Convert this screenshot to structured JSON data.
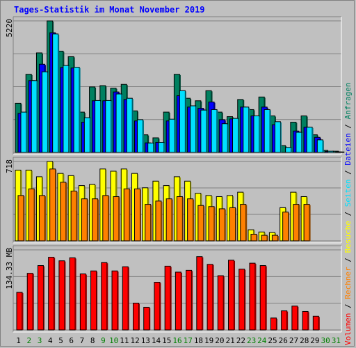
{
  "chart_data": {
    "type": "bar",
    "title": "Tages-Statistik im Monat November 2019",
    "x": [
      "1",
      "2",
      "3",
      "4",
      "5",
      "6",
      "7",
      "8",
      "9",
      "10",
      "11",
      "12",
      "13",
      "14",
      "15",
      "16",
      "17",
      "18",
      "19",
      "20",
      "21",
      "22",
      "23",
      "24",
      "25",
      "26",
      "27",
      "28",
      "29",
      "30",
      "31"
    ],
    "x_colors": [
      "#000000",
      "#008000",
      "#008000",
      "#000000",
      "#000000",
      "#000000",
      "#000000",
      "#000000",
      "#008000",
      "#008000",
      "#000000",
      "#000000",
      "#000000",
      "#000000",
      "#000000",
      "#008000",
      "#008000",
      "#000000",
      "#000000",
      "#000000",
      "#000000",
      "#000000",
      "#008000",
      "#008000",
      "#000000",
      "#000000",
      "#000000",
      "#000000",
      "#000000",
      "#008000",
      "#008000"
    ],
    "panels": [
      {
        "name": "top",
        "ymax_label": "5220",
        "ymax": 5220,
        "series": [
          {
            "name": "Anfragen",
            "color": "#008060",
            "values": [
              1950,
              3100,
              3950,
              5220,
              4020,
              3800,
              1600,
              2600,
              2650,
              2550,
              2700,
              1650,
              700,
              580,
              1600,
              3100,
              2150,
              2050,
              2450,
              1600,
              1420,
              2100,
              1700,
              2200,
              1450,
              270,
              1200,
              1450,
              700,
              80,
              50
            ]
          },
          {
            "name": "Dateien",
            "color": "#0000ff",
            "values": [
              1550,
              2850,
              3500,
              4750,
              3370,
              3350,
              1200,
              2050,
              2050,
              2400,
              2100,
              1250,
              380,
              400,
              1250,
              2250,
              1800,
              1750,
              2000,
              1300,
              1330,
              1800,
              1450,
              1800,
              1100,
              0,
              850,
              1000,
              600,
              40,
              20
            ]
          },
          {
            "name": "Seiten",
            "color": "#00e0ff",
            "values": [
              1600,
              2850,
              3200,
              4700,
              3450,
              3380,
              1380,
              2060,
              2060,
              2320,
              2150,
              1300,
              370,
              400,
              1320,
              2450,
              1850,
              1680,
              1700,
              1140,
              1350,
              1800,
              1450,
              1700,
              1220,
              200,
              800,
              1000,
              500,
              50,
              20
            ]
          }
        ]
      },
      {
        "name": "middle",
        "ymax_label": "718",
        "ymax": 718,
        "series": [
          {
            "name": "Besuche",
            "color": "#ffff00",
            "values": [
              640,
              640,
              580,
              718,
              610,
              590,
              500,
              510,
              650,
              630,
              650,
              610,
              480,
              540,
              500,
              580,
              540,
              430,
              410,
              400,
              410,
              440,
              100,
              80,
              75,
              300,
              440,
              400,
              0,
              0,
              0
            ]
          },
          {
            "name": "Rechner",
            "color": "#ff8000",
            "values": [
              410,
              470,
              410,
              650,
              530,
              450,
              380,
              380,
              410,
              400,
              470,
              470,
              330,
              360,
              380,
              400,
              380,
              320,
              310,
              290,
              300,
              330,
              60,
              50,
              50,
              260,
              330,
              330,
              0,
              0,
              0
            ]
          }
        ]
      },
      {
        "name": "bottom",
        "ymax_label": "134.33 MB",
        "ymax": 134.33,
        "series": [
          {
            "name": "Volumen",
            "color": "#ff0000",
            "values": [
              63,
              95,
              108,
              122,
              116,
              121,
              94,
              99,
              113,
              99,
              106,
              45,
              38,
              80,
              107,
              97,
              100,
              123,
              110,
              91,
              117,
              102,
              112,
              108,
              20,
              32,
              40,
              31,
              23,
              0,
              0
            ]
          }
        ]
      }
    ],
    "legend_order": [
      "Volumen",
      "Rechner",
      "Besuche",
      "Seiten",
      "Dateien",
      "Anfragen"
    ],
    "legend_separator": " / ",
    "legend_colors": {
      "Volumen": "#ff0000",
      "Rechner": "#ff8000",
      "Besuche": "#ffff00",
      "Seiten": "#00e0ff",
      "Dateien": "#0000ff",
      "Anfragen": "#008060"
    },
    "grid": true
  }
}
